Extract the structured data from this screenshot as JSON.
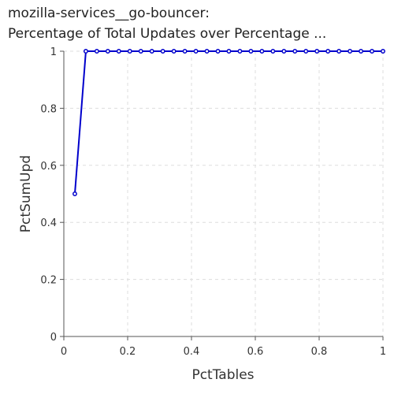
{
  "chart_data": {
    "type": "line",
    "title_lines": [
      "mozilla-services__go-bouncer:",
      "Percentage of Total Updates over Percentage ..."
    ],
    "xlabel": "PctTables",
    "ylabel": "PctSumUpd",
    "xlim": [
      0,
      1
    ],
    "ylim": [
      0,
      1
    ],
    "xticks": [
      "0",
      "0.2",
      "0.4",
      "0.6",
      "0.8",
      "1"
    ],
    "yticks": [
      "0",
      "0.2",
      "0.4",
      "0.6",
      "0.8",
      "1"
    ],
    "grid": true,
    "series_color": "#0000cc",
    "x": [
      0.0345,
      0.069,
      0.1034,
      0.1379,
      0.1724,
      0.2069,
      0.2414,
      0.2759,
      0.3103,
      0.3448,
      0.3793,
      0.4138,
      0.4483,
      0.4828,
      0.5172,
      0.5517,
      0.5862,
      0.6207,
      0.6552,
      0.6897,
      0.7241,
      0.7586,
      0.7931,
      0.8276,
      0.8621,
      0.8966,
      0.931,
      0.9655,
      1.0
    ],
    "y": [
      0.5,
      1,
      1,
      1,
      1,
      1,
      1,
      1,
      1,
      1,
      1,
      1,
      1,
      1,
      1,
      1,
      1,
      1,
      1,
      1,
      1,
      1,
      1,
      1,
      1,
      1,
      1,
      1,
      1
    ]
  }
}
